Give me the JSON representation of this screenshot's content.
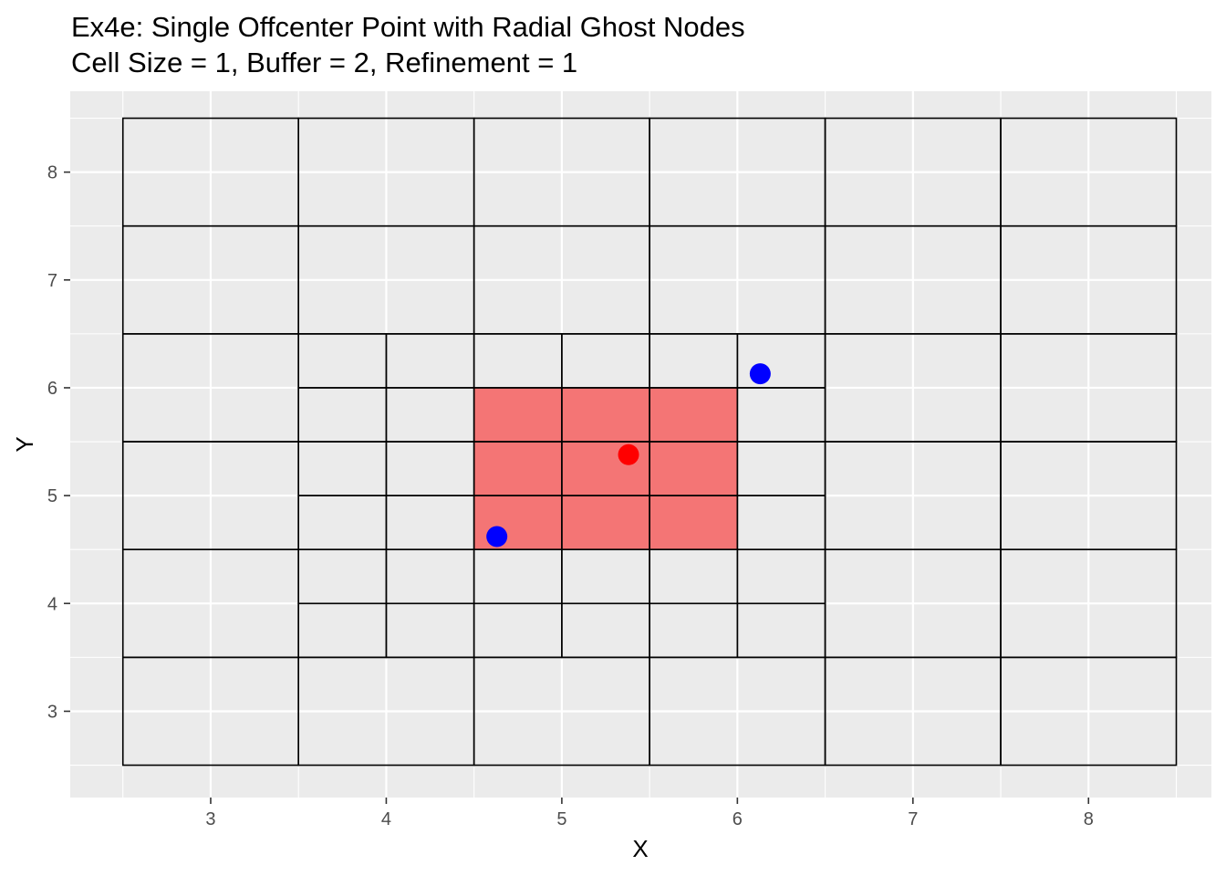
{
  "chart_data": {
    "type": "scatter",
    "title": "Ex4e: Single Offcenter Point with Radial Ghost Nodes",
    "subtitle": "Cell Size = 1, Buffer = 2, Refinement = 1",
    "xlabel": "X",
    "ylabel": "Y",
    "xlim": [
      2.2,
      8.7
    ],
    "ylim": [
      2.2,
      8.75
    ],
    "x_ticks": [
      3,
      4,
      5,
      6,
      7,
      8
    ],
    "y_ticks": [
      3,
      4,
      5,
      6,
      7,
      8
    ],
    "grid": true,
    "panel_color": "#ebebeb",
    "grid_color": "#ffffff",
    "cell_border_color": "#000000",
    "highlight_color": "#f47575",
    "highlight_region": {
      "x": [
        4.5,
        6.0
      ],
      "y": [
        4.5,
        6.0
      ]
    },
    "cells": [
      {
        "x": [
          2.5,
          3.5
        ],
        "y": [
          2.5,
          3.5
        ]
      },
      {
        "x": [
          3.5,
          4.5
        ],
        "y": [
          2.5,
          3.5
        ]
      },
      {
        "x": [
          4.5,
          5.5
        ],
        "y": [
          2.5,
          3.5
        ]
      },
      {
        "x": [
          5.5,
          6.5
        ],
        "y": [
          2.5,
          3.5
        ]
      },
      {
        "x": [
          6.5,
          7.5
        ],
        "y": [
          2.5,
          3.5
        ]
      },
      {
        "x": [
          7.5,
          8.5
        ],
        "y": [
          2.5,
          3.5
        ]
      },
      {
        "x": [
          2.5,
          3.5
        ],
        "y": [
          3.5,
          4.5
        ]
      },
      {
        "x": [
          2.5,
          3.5
        ],
        "y": [
          4.5,
          5.5
        ]
      },
      {
        "x": [
          2.5,
          3.5
        ],
        "y": [
          5.5,
          6.5
        ]
      },
      {
        "x": [
          6.5,
          7.5
        ],
        "y": [
          3.5,
          4.5
        ]
      },
      {
        "x": [
          6.5,
          7.5
        ],
        "y": [
          4.5,
          5.5
        ]
      },
      {
        "x": [
          6.5,
          7.5
        ],
        "y": [
          5.5,
          6.5
        ]
      },
      {
        "x": [
          7.5,
          8.5
        ],
        "y": [
          3.5,
          4.5
        ]
      },
      {
        "x": [
          7.5,
          8.5
        ],
        "y": [
          4.5,
          5.5
        ]
      },
      {
        "x": [
          7.5,
          8.5
        ],
        "y": [
          5.5,
          6.5
        ]
      },
      {
        "x": [
          2.5,
          3.5
        ],
        "y": [
          6.5,
          7.5
        ]
      },
      {
        "x": [
          3.5,
          4.5
        ],
        "y": [
          6.5,
          7.5
        ]
      },
      {
        "x": [
          4.5,
          5.5
        ],
        "y": [
          6.5,
          7.5
        ]
      },
      {
        "x": [
          5.5,
          6.5
        ],
        "y": [
          6.5,
          7.5
        ]
      },
      {
        "x": [
          6.5,
          7.5
        ],
        "y": [
          6.5,
          7.5
        ]
      },
      {
        "x": [
          7.5,
          8.5
        ],
        "y": [
          6.5,
          7.5
        ]
      },
      {
        "x": [
          2.5,
          3.5
        ],
        "y": [
          7.5,
          8.5
        ]
      },
      {
        "x": [
          3.5,
          4.5
        ],
        "y": [
          7.5,
          8.5
        ]
      },
      {
        "x": [
          4.5,
          5.5
        ],
        "y": [
          7.5,
          8.5
        ]
      },
      {
        "x": [
          5.5,
          6.5
        ],
        "y": [
          7.5,
          8.5
        ]
      },
      {
        "x": [
          6.5,
          7.5
        ],
        "y": [
          7.5,
          8.5
        ]
      },
      {
        "x": [
          7.5,
          8.5
        ],
        "y": [
          7.5,
          8.5
        ]
      },
      {
        "x": [
          3.5,
          4.0
        ],
        "y": [
          3.5,
          4.0
        ]
      },
      {
        "x": [
          4.0,
          4.5
        ],
        "y": [
          3.5,
          4.0
        ]
      },
      {
        "x": [
          4.5,
          5.0
        ],
        "y": [
          3.5,
          4.0
        ]
      },
      {
        "x": [
          5.0,
          5.5
        ],
        "y": [
          3.5,
          4.0
        ]
      },
      {
        "x": [
          5.5,
          6.0
        ],
        "y": [
          3.5,
          4.0
        ]
      },
      {
        "x": [
          6.0,
          6.5
        ],
        "y": [
          3.5,
          4.0
        ]
      },
      {
        "x": [
          3.5,
          4.0
        ],
        "y": [
          4.0,
          4.5
        ]
      },
      {
        "x": [
          4.0,
          4.5
        ],
        "y": [
          4.0,
          4.5
        ]
      },
      {
        "x": [
          4.5,
          5.0
        ],
        "y": [
          4.0,
          4.5
        ]
      },
      {
        "x": [
          5.0,
          5.5
        ],
        "y": [
          4.0,
          4.5
        ]
      },
      {
        "x": [
          5.5,
          6.0
        ],
        "y": [
          4.0,
          4.5
        ]
      },
      {
        "x": [
          6.0,
          6.5
        ],
        "y": [
          4.0,
          4.5
        ]
      },
      {
        "x": [
          3.5,
          4.0
        ],
        "y": [
          4.5,
          5.0
        ]
      },
      {
        "x": [
          4.0,
          4.5
        ],
        "y": [
          4.5,
          5.0
        ]
      },
      {
        "x": [
          4.5,
          5.0
        ],
        "y": [
          4.5,
          5.0
        ]
      },
      {
        "x": [
          5.0,
          5.5
        ],
        "y": [
          4.5,
          5.0
        ]
      },
      {
        "x": [
          5.5,
          6.0
        ],
        "y": [
          4.5,
          5.0
        ]
      },
      {
        "x": [
          6.0,
          6.5
        ],
        "y": [
          4.5,
          5.0
        ]
      },
      {
        "x": [
          3.5,
          4.0
        ],
        "y": [
          5.0,
          5.5
        ]
      },
      {
        "x": [
          4.0,
          4.5
        ],
        "y": [
          5.0,
          5.5
        ]
      },
      {
        "x": [
          4.5,
          5.0
        ],
        "y": [
          5.0,
          5.5
        ]
      },
      {
        "x": [
          5.0,
          5.5
        ],
        "y": [
          5.0,
          5.5
        ]
      },
      {
        "x": [
          5.5,
          6.0
        ],
        "y": [
          5.0,
          5.5
        ]
      },
      {
        "x": [
          6.0,
          6.5
        ],
        "y": [
          5.0,
          5.5
        ]
      },
      {
        "x": [
          3.5,
          4.0
        ],
        "y": [
          5.5,
          6.0
        ]
      },
      {
        "x": [
          4.0,
          4.5
        ],
        "y": [
          5.5,
          6.0
        ]
      },
      {
        "x": [
          4.5,
          5.0
        ],
        "y": [
          5.5,
          6.0
        ]
      },
      {
        "x": [
          5.0,
          5.5
        ],
        "y": [
          5.5,
          6.0
        ]
      },
      {
        "x": [
          5.5,
          6.0
        ],
        "y": [
          5.5,
          6.0
        ]
      },
      {
        "x": [
          6.0,
          6.5
        ],
        "y": [
          5.5,
          6.0
        ]
      },
      {
        "x": [
          3.5,
          4.0
        ],
        "y": [
          6.0,
          6.5
        ]
      },
      {
        "x": [
          4.0,
          4.5
        ],
        "y": [
          6.0,
          6.5
        ]
      },
      {
        "x": [
          4.5,
          5.0
        ],
        "y": [
          6.0,
          6.5
        ]
      },
      {
        "x": [
          5.0,
          5.5
        ],
        "y": [
          6.0,
          6.5
        ]
      },
      {
        "x": [
          5.5,
          6.0
        ],
        "y": [
          6.0,
          6.5
        ]
      },
      {
        "x": [
          6.0,
          6.5
        ],
        "y": [
          6.0,
          6.5
        ]
      }
    ],
    "points": [
      {
        "x": 5.38,
        "y": 5.38,
        "color": "#ff0000"
      },
      {
        "x": 4.63,
        "y": 4.62,
        "color": "#0000ff"
      },
      {
        "x": 6.13,
        "y": 6.13,
        "color": "#0000ff"
      }
    ]
  }
}
